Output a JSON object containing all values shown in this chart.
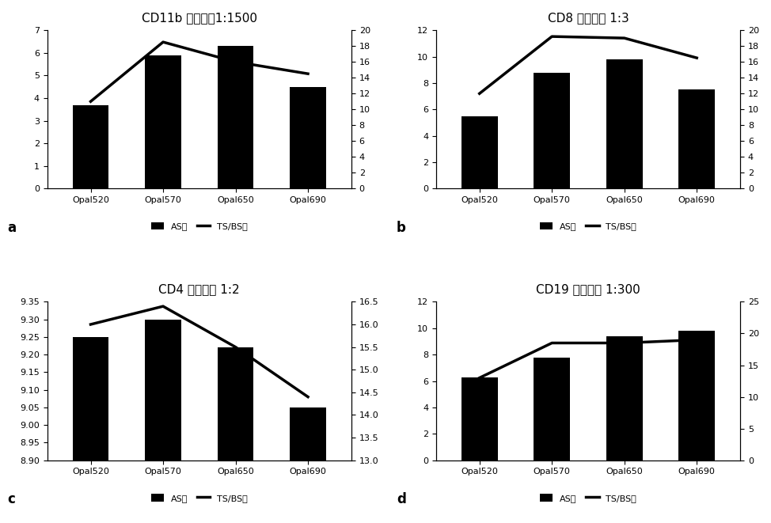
{
  "panels": [
    {
      "title": "CD11b 酸性微批1:1500",
      "label": "a",
      "categories": [
        "Opal520",
        "Opal570",
        "Opal650",
        "Opal690"
      ],
      "bar_values": [
        3.7,
        5.9,
        6.3,
        4.5
      ],
      "line_values": [
        11.0,
        18.5,
        16.0,
        14.5
      ],
      "left_ylim": [
        0,
        7
      ],
      "left_yticks": [
        0,
        1,
        2,
        3,
        4,
        5,
        6,
        7
      ],
      "right_ylim": [
        0,
        20
      ],
      "right_yticks": [
        0,
        2,
        4,
        6,
        8,
        10,
        12,
        14,
        16,
        18,
        20
      ]
    },
    {
      "title": "CD8 碱性高压 1:3",
      "label": "b",
      "categories": [
        "Opal520",
        "Opal570",
        "Opal650",
        "Opal690"
      ],
      "bar_values": [
        5.5,
        8.8,
        9.8,
        7.5
      ],
      "line_values": [
        12.0,
        19.2,
        19.0,
        16.5
      ],
      "left_ylim": [
        0,
        12
      ],
      "left_yticks": [
        0,
        2,
        4,
        6,
        8,
        10,
        12
      ],
      "right_ylim": [
        0,
        20
      ],
      "right_yticks": [
        0,
        2,
        4,
        6,
        8,
        10,
        12,
        14,
        16,
        18,
        20
      ]
    },
    {
      "title": "CD4 碱性高压 1:2",
      "label": "c",
      "categories": [
        "Opal520",
        "Opal570",
        "Opal650",
        "Opal690"
      ],
      "bar_values": [
        9.25,
        9.3,
        9.22,
        9.05
      ],
      "line_values": [
        16.0,
        16.4,
        15.5,
        14.4
      ],
      "left_ylim": [
        8.9,
        9.35
      ],
      "left_yticks": [
        8.9,
        8.95,
        9.0,
        9.05,
        9.1,
        9.15,
        9.2,
        9.25,
        9.3,
        9.35
      ],
      "right_ylim": [
        13.0,
        16.5
      ],
      "right_yticks": [
        13.0,
        13.5,
        14.0,
        14.5,
        15.0,
        15.5,
        16.0,
        16.5
      ]
    },
    {
      "title": "CD19 碱性高压 1:300",
      "label": "d",
      "categories": [
        "Opal520",
        "Opal570",
        "Opal650",
        "Opal690"
      ],
      "bar_values": [
        6.3,
        7.8,
        9.4,
        9.8
      ],
      "line_values": [
        13.0,
        18.5,
        18.5,
        19.0
      ],
      "left_ylim": [
        0,
        12
      ],
      "left_yticks": [
        0,
        2,
        4,
        6,
        8,
        10,
        12
      ],
      "right_ylim": [
        0,
        25
      ],
      "right_yticks": [
        0,
        5,
        10,
        15,
        20,
        25
      ]
    }
  ],
  "bar_color": "#000000",
  "line_color": "#000000",
  "legend_bar_label": "AS値",
  "legend_line_label": "TS/BS値",
  "background_color": "#ffffff",
  "title_fontsize": 11,
  "tick_fontsize": 8,
  "label_fontsize": 12
}
